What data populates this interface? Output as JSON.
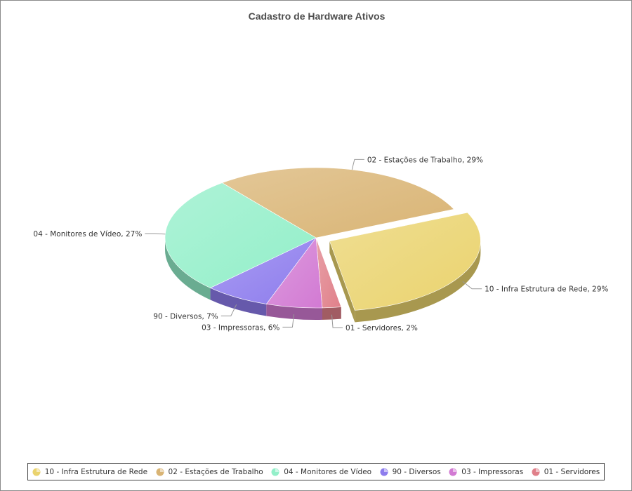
{
  "chart_data": {
    "type": "pie",
    "title": "Cadastro de Hardware Ativos",
    "slices": [
      {
        "label": "10 - Infra Estrutura de Rede",
        "value": 29,
        "color": "#ead36e",
        "callout": "10 - Infra Estrutura de Rede, 29%",
        "exploded": true
      },
      {
        "label": "01 - Servidores",
        "value": 2,
        "color": "#e0808a",
        "callout": "01 - Servidores, 2%"
      },
      {
        "label": "03 - Impressoras",
        "value": 6,
        "color": "#d27ad3",
        "callout": "03 - Impressoras, 6%"
      },
      {
        "label": "90 - Diversos",
        "value": 7,
        "color": "#8d7ced",
        "callout": "90 - Diversos, 7%"
      },
      {
        "label": "04 - Monitores de Vídeo",
        "value": 27,
        "color": "#93efc9",
        "callout": "04 - Monitores de Vídeo, 27%"
      },
      {
        "label": "02 - Estações de Trabalho",
        "value": 29,
        "color": "#d9b474",
        "callout": "02 - Estações de Trabalho, 29%"
      }
    ],
    "legend": {
      "position": "bottom",
      "items": [
        {
          "label": "10 - Infra Estrutura de Rede",
          "color": "#ead36e"
        },
        {
          "label": "02 - Estações de Trabalho",
          "color": "#d9b474"
        },
        {
          "label": "04 - Monitores de Vídeo",
          "color": "#93efc9"
        },
        {
          "label": "90 - Diversos",
          "color": "#8d7ced"
        },
        {
          "label": "03 - Impressoras",
          "color": "#d27ad3"
        },
        {
          "label": "01 - Servidores",
          "color": "#e0808a"
        }
      ]
    }
  }
}
